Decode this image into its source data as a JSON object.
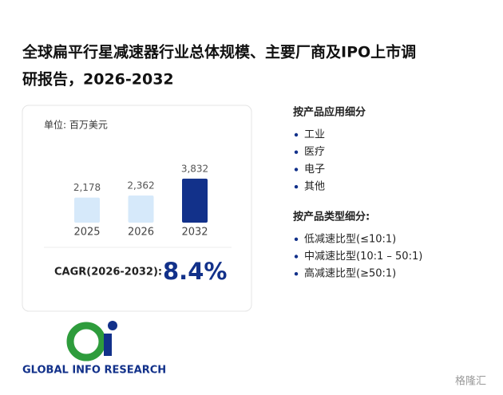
{
  "title_lines": [
    "全球扁平行星减速器行业总体规模、主要厂商及IPO上市调",
    "研报告，2026-2032"
  ],
  "chart_data": {
    "type": "bar",
    "unit_label": "单位: 百万美元",
    "categories": [
      "2025",
      "2026",
      "2032"
    ],
    "values": [
      2178,
      2362,
      3832
    ],
    "value_labels": [
      "2,178",
      "2,362",
      "3,832"
    ],
    "colors": [
      "#d6e9fa",
      "#d6e9fa",
      "#12318a"
    ]
  },
  "cagr": {
    "label": "CAGR(2026-2032):",
    "value": "8.4%"
  },
  "segments": [
    {
      "heading": "按产品应用细分",
      "items": [
        "工业",
        "医疗",
        "电子",
        "其他"
      ]
    },
    {
      "heading": "按产品类型细分:",
      "items": [
        "低减速比型(≤10:1)",
        "中减速比型(10:1 – 50:1)",
        "高减速比型(≥50:1)"
      ]
    }
  ],
  "logo_text": "GLOBAL INFO RESEARCH",
  "watermark": "格隆汇"
}
